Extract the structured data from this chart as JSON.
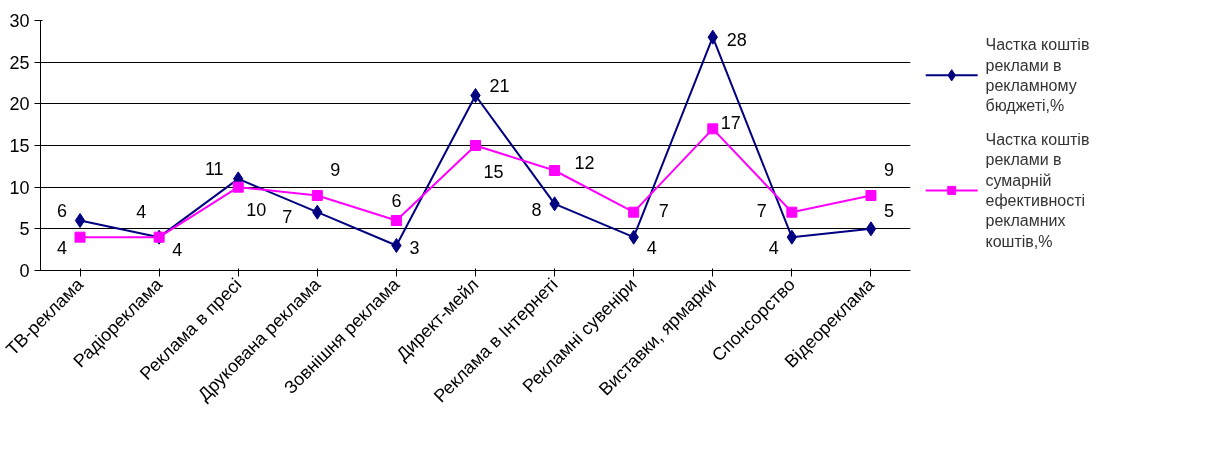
{
  "chart_data": {
    "type": "line",
    "categories": [
      "ТВ-реклама",
      "Радіореклама",
      "Реклама в пресі",
      "Друкована реклама",
      "Зовнішня реклама",
      "Директ-мейл",
      "Реклама в Інтернеті",
      "Рекламні сувеніри",
      "Виставки, ярмарки",
      "Спонсорство",
      "Відеореклама"
    ],
    "series": [
      {
        "name": "Частка коштів реклами в рекламному бюджеті,%",
        "color": "#000080",
        "marker": "diamond",
        "values": [
          6,
          4,
          11,
          7,
          3,
          21,
          8,
          4,
          28,
          4,
          5
        ]
      },
      {
        "name": "Частка коштів реклами в сумарній ефективності рекламних коштів,%",
        "color": "#ff00ff",
        "marker": "square",
        "values": [
          4,
          4,
          10,
          9,
          6,
          15,
          12,
          7,
          17,
          7,
          9
        ]
      }
    ],
    "ylim": [
      0,
      30
    ],
    "yticks": [
      0,
      5,
      10,
      15,
      20,
      25,
      30
    ],
    "grid": "y",
    "legend": "right",
    "data_labels": true,
    "line_style": "solid"
  }
}
